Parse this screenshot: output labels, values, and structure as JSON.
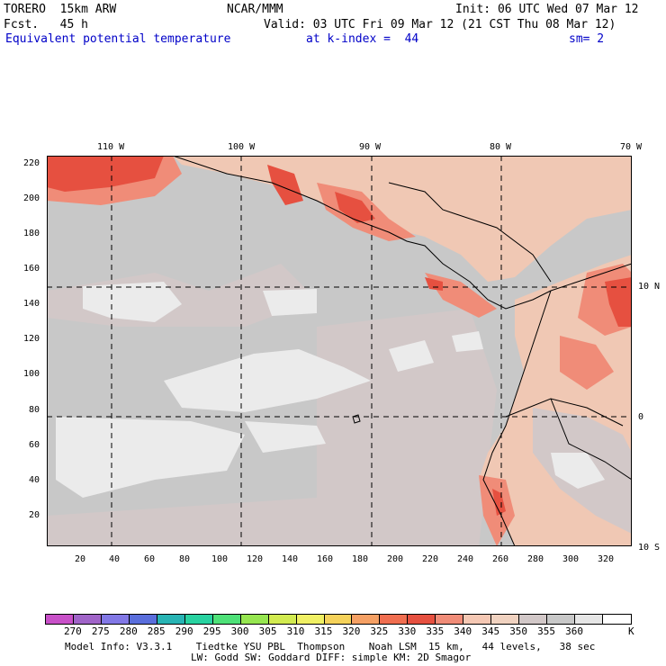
{
  "header": {
    "model": "TORERO  15km ARW",
    "org": "NCAR/MMM",
    "init": "Init: 06 UTC Wed 07 Mar 12",
    "fcst": "Fcst.   45 h",
    "valid": "Valid: 03 UTC Fri 09 Mar 12 (21 CST Thu 08 Mar 12)",
    "field": "Equivalent potential temperature",
    "level": "at k-index =  44",
    "smooth": "sm= 2"
  },
  "axes": {
    "lon_labels": [
      "110 W",
      "100 W",
      "90 W",
      "80 W",
      "70 W"
    ],
    "lat_labels": [
      "10 N",
      "0",
      "10 S"
    ],
    "y_ticks": [
      "220",
      "200",
      "180",
      "160",
      "140",
      "120",
      "100",
      "80",
      "60",
      "40",
      "20"
    ],
    "x_ticks": [
      "20",
      "40",
      "60",
      "80",
      "100",
      "120",
      "140",
      "160",
      "180",
      "200",
      "220",
      "240",
      "260",
      "280",
      "300",
      "320"
    ]
  },
  "colorbar": {
    "labels": [
      "270",
      "275",
      "280",
      "285",
      "290",
      "295",
      "300",
      "305",
      "310",
      "315",
      "320",
      "325",
      "330",
      "335",
      "340",
      "345",
      "350",
      "355",
      "360"
    ],
    "unit": "K",
    "colors": [
      "#c850c8",
      "#a064c8",
      "#8278e6",
      "#5a6edc",
      "#28b4b4",
      "#28d2a0",
      "#4ee178",
      "#96e650",
      "#d2eb50",
      "#f0f064",
      "#f5d25a",
      "#f5a064",
      "#f06e50",
      "#e65040",
      "#f08c78",
      "#f5c8b4",
      "#f0d2c0",
      "#d2c8c8",
      "#c8c8c8",
      "#e6e6e6",
      "#ffffff"
    ]
  },
  "footer": {
    "line1": "Model Info: V3.3.1    Tiedtke YSU PBL  Thompson    Noah LSM  15 km,   44 levels,   38 sec",
    "line2": "LW: Godd SW: Goddard DIFF: simple KM: 2D Smagor"
  }
}
